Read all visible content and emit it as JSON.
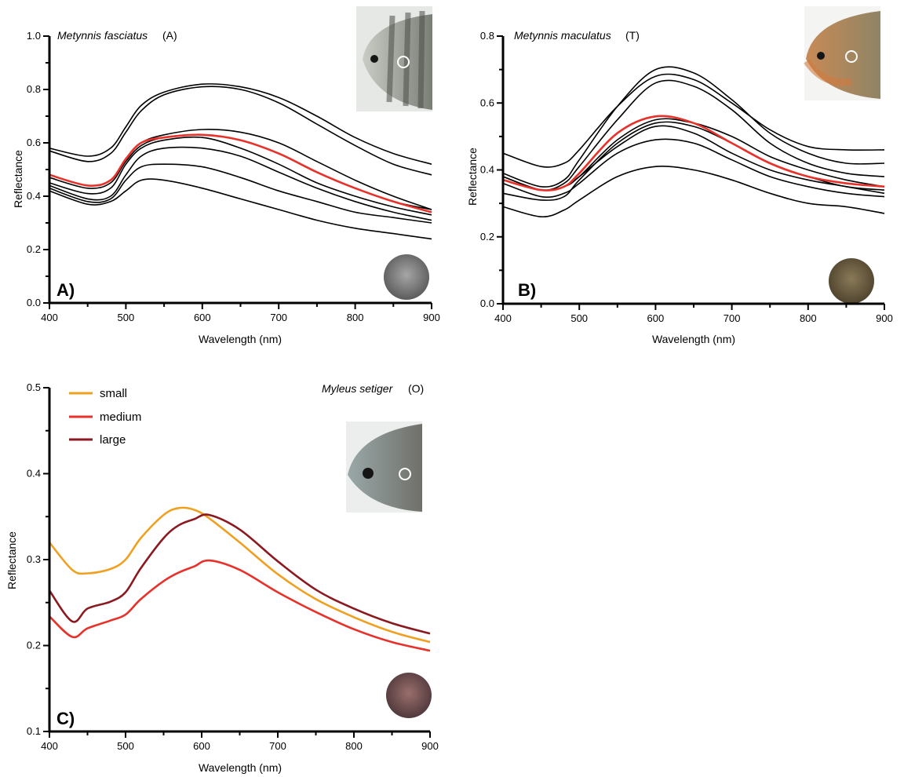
{
  "chart_data": [
    {
      "panel": "A)",
      "type": "line",
      "species_name": "Metynnis fasciatus",
      "species_code": "(A)",
      "xlabel": "Wavelength (nm)",
      "ylabel": "Reflectance",
      "xlim": [
        400,
        900
      ],
      "ylim": [
        0.0,
        1.0
      ],
      "xticks": [
        "400",
        "500",
        "600",
        "700",
        "800",
        "900"
      ],
      "yticks": [
        "0.0",
        "0.2",
        "0.4",
        "0.6",
        "0.8",
        "1.0"
      ],
      "x": [
        400,
        450,
        480,
        500,
        520,
        550,
        600,
        650,
        700,
        750,
        800,
        850,
        900
      ],
      "series": [
        {
          "color": "#000000",
          "values": [
            0.58,
            0.55,
            0.58,
            0.66,
            0.74,
            0.79,
            0.82,
            0.81,
            0.77,
            0.7,
            0.62,
            0.56,
            0.52
          ]
        },
        {
          "color": "#000000",
          "values": [
            0.57,
            0.53,
            0.56,
            0.64,
            0.72,
            0.78,
            0.81,
            0.8,
            0.75,
            0.67,
            0.59,
            0.52,
            0.48
          ]
        },
        {
          "color": "#000000",
          "values": [
            0.48,
            0.44,
            0.46,
            0.54,
            0.6,
            0.63,
            0.65,
            0.64,
            0.6,
            0.53,
            0.46,
            0.4,
            0.35
          ]
        },
        {
          "color": "#000000",
          "values": [
            0.47,
            0.43,
            0.45,
            0.53,
            0.59,
            0.62,
            0.63,
            0.61,
            0.56,
            0.49,
            0.43,
            0.38,
            0.35
          ]
        },
        {
          "color": "#000000",
          "values": [
            0.45,
            0.41,
            0.43,
            0.52,
            0.58,
            0.61,
            0.62,
            0.58,
            0.52,
            0.45,
            0.4,
            0.36,
            0.33
          ]
        },
        {
          "color": "#000000",
          "values": [
            0.44,
            0.39,
            0.4,
            0.48,
            0.55,
            0.58,
            0.58,
            0.55,
            0.49,
            0.43,
            0.38,
            0.34,
            0.31
          ]
        },
        {
          "color": "#000000",
          "values": [
            0.43,
            0.38,
            0.39,
            0.46,
            0.51,
            0.52,
            0.51,
            0.47,
            0.42,
            0.38,
            0.34,
            0.32,
            0.3
          ]
        },
        {
          "color": "#000000",
          "values": [
            0.42,
            0.37,
            0.38,
            0.42,
            0.46,
            0.46,
            0.43,
            0.39,
            0.35,
            0.31,
            0.28,
            0.26,
            0.24
          ]
        },
        {
          "color": "#e8312a",
          "values": [
            0.48,
            0.44,
            0.46,
            0.54,
            0.6,
            0.62,
            0.63,
            0.61,
            0.56,
            0.49,
            0.43,
            0.38,
            0.34
          ]
        }
      ]
    },
    {
      "panel": "B)",
      "type": "line",
      "species_name": "Metynnis maculatus",
      "species_code": "(T)",
      "xlabel": "Wavelength (nm)",
      "ylabel": "Reflectance",
      "xlim": [
        400,
        900
      ],
      "ylim": [
        0.0,
        0.8
      ],
      "xticks": [
        "400",
        "500",
        "600",
        "700",
        "800",
        "900"
      ],
      "yticks": [
        "0.0",
        "0.2",
        "0.4",
        "0.6",
        "0.8"
      ],
      "x": [
        400,
        450,
        480,
        500,
        550,
        600,
        650,
        700,
        750,
        800,
        850,
        900
      ],
      "series": [
        {
          "color": "#000000",
          "values": [
            0.45,
            0.41,
            0.42,
            0.46,
            0.59,
            0.68,
            0.67,
            0.6,
            0.52,
            0.47,
            0.46,
            0.46
          ]
        },
        {
          "color": "#000000",
          "values": [
            0.39,
            0.35,
            0.37,
            0.43,
            0.59,
            0.7,
            0.69,
            0.61,
            0.51,
            0.45,
            0.42,
            0.42
          ]
        },
        {
          "color": "#000000",
          "values": [
            0.38,
            0.34,
            0.36,
            0.41,
            0.55,
            0.66,
            0.65,
            0.58,
            0.48,
            0.42,
            0.39,
            0.38
          ]
        },
        {
          "color": "#000000",
          "values": [
            0.38,
            0.34,
            0.35,
            0.38,
            0.49,
            0.55,
            0.54,
            0.5,
            0.44,
            0.4,
            0.37,
            0.35
          ]
        },
        {
          "color": "#000000",
          "values": [
            0.37,
            0.34,
            0.35,
            0.38,
            0.47,
            0.53,
            0.51,
            0.45,
            0.4,
            0.37,
            0.35,
            0.33
          ]
        },
        {
          "color": "#000000",
          "values": [
            0.36,
            0.32,
            0.33,
            0.36,
            0.45,
            0.49,
            0.48,
            0.43,
            0.38,
            0.35,
            0.33,
            0.32
          ]
        },
        {
          "color": "#000000",
          "values": [
            0.29,
            0.26,
            0.28,
            0.31,
            0.38,
            0.41,
            0.4,
            0.37,
            0.33,
            0.3,
            0.29,
            0.27
          ]
        },
        {
          "color": "#000000",
          "values": [
            0.33,
            0.31,
            0.32,
            0.37,
            0.48,
            0.54,
            0.53,
            0.48,
            0.42,
            0.38,
            0.35,
            0.34
          ]
        },
        {
          "color": "#e8312a",
          "values": [
            0.37,
            0.34,
            0.35,
            0.39,
            0.51,
            0.56,
            0.54,
            0.48,
            0.42,
            0.38,
            0.36,
            0.35
          ]
        }
      ]
    },
    {
      "panel": "C)",
      "type": "line",
      "species_name": "Myleus setiger",
      "species_code": "(O)",
      "xlabel": "Wavelength (nm)",
      "ylabel": "Reflectance",
      "xlim": [
        400,
        900
      ],
      "ylim": [
        0.1,
        0.5
      ],
      "xticks": [
        "400",
        "500",
        "600",
        "700",
        "800",
        "900"
      ],
      "yticks": [
        "0.1",
        "0.2",
        "0.3",
        "0.4",
        "0.5"
      ],
      "legend": "top-left",
      "x": [
        400,
        430,
        450,
        480,
        500,
        520,
        550,
        570,
        590,
        610,
        650,
        700,
        750,
        800,
        850,
        900
      ],
      "series": [
        {
          "name": "small",
          "color": "#f0a020",
          "values": [
            0.32,
            0.288,
            0.284,
            0.289,
            0.3,
            0.325,
            0.352,
            0.36,
            0.358,
            0.348,
            0.32,
            0.283,
            0.254,
            0.233,
            0.216,
            0.204
          ]
        },
        {
          "name": "medium",
          "color": "#e8312a",
          "values": [
            0.234,
            0.21,
            0.22,
            0.229,
            0.236,
            0.254,
            0.275,
            0.285,
            0.292,
            0.299,
            0.288,
            0.262,
            0.239,
            0.219,
            0.204,
            0.194
          ]
        },
        {
          "name": "large",
          "color": "#8a1a1f",
          "values": [
            0.264,
            0.228,
            0.243,
            0.251,
            0.262,
            0.29,
            0.325,
            0.34,
            0.347,
            0.352,
            0.335,
            0.298,
            0.265,
            0.243,
            0.226,
            0.214
          ]
        }
      ]
    }
  ]
}
